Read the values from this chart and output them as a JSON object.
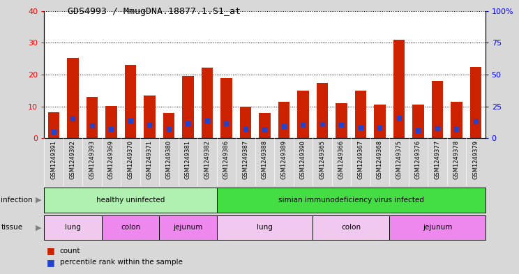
{
  "title": "GDS4993 / MmugDNA.18877.1.S1_at",
  "samples": [
    "GSM1249391",
    "GSM1249392",
    "GSM1249393",
    "GSM1249369",
    "GSM1249370",
    "GSM1249371",
    "GSM1249380",
    "GSM1249381",
    "GSM1249382",
    "GSM1249386",
    "GSM1249387",
    "GSM1249388",
    "GSM1249389",
    "GSM1249390",
    "GSM1249365",
    "GSM1249366",
    "GSM1249367",
    "GSM1249368",
    "GSM1249375",
    "GSM1249376",
    "GSM1249377",
    "GSM1249378",
    "GSM1249379"
  ],
  "counts": [
    8.2,
    25.3,
    13.0,
    10.2,
    23.0,
    13.5,
    8.0,
    19.5,
    22.3,
    19.0,
    10.0,
    8.0,
    11.5,
    15.0,
    17.5,
    11.0,
    15.0,
    10.5,
    31.0,
    10.5,
    18.0,
    11.5,
    22.5
  ],
  "percentile_ranks": [
    5.0,
    15.5,
    10.3,
    7.5,
    14.0,
    10.8,
    7.5,
    12.0,
    14.0,
    11.5,
    7.5,
    7.0,
    9.8,
    10.5,
    11.0,
    10.5,
    8.5,
    8.5,
    16.0,
    6.5,
    8.0,
    7.5,
    13.5
  ],
  "bar_color": "#cc2200",
  "dot_color": "#2244cc",
  "background_color": "#d8d8d8",
  "plot_bg": "#ffffff",
  "xtick_bg": "#d0d0d0",
  "ylim_left": [
    0,
    40
  ],
  "ylim_right": [
    0,
    100
  ],
  "yticks_left": [
    0,
    10,
    20,
    30,
    40
  ],
  "yticks_right": [
    0,
    25,
    50,
    75,
    100
  ],
  "ytick_labels_right": [
    "0",
    "25",
    "50",
    "75",
    "100%"
  ],
  "infection_row_label": "infection",
  "tissue_row_label": "tissue",
  "legend_count_label": "count",
  "legend_percentile_label": "percentile rank within the sample",
  "infection_spans": [
    {
      "label": "healthy uninfected",
      "start": 0,
      "end": 9,
      "color": "#b0f0b0"
    },
    {
      "label": "simian immunodeficiency virus infected",
      "start": 9,
      "end": 23,
      "color": "#44dd44"
    }
  ],
  "tissue_spans": [
    {
      "label": "lung",
      "start": 0,
      "end": 3,
      "color": "#f0c8f0"
    },
    {
      "label": "colon",
      "start": 3,
      "end": 6,
      "color": "#ee88ee"
    },
    {
      "label": "jejunum",
      "start": 6,
      "end": 9,
      "color": "#ee88ee"
    },
    {
      "label": "lung",
      "start": 9,
      "end": 14,
      "color": "#f0c8f0"
    },
    {
      "label": "colon",
      "start": 14,
      "end": 18,
      "color": "#f0c8f0"
    },
    {
      "label": "jejunum",
      "start": 18,
      "end": 23,
      "color": "#ee88ee"
    }
  ]
}
